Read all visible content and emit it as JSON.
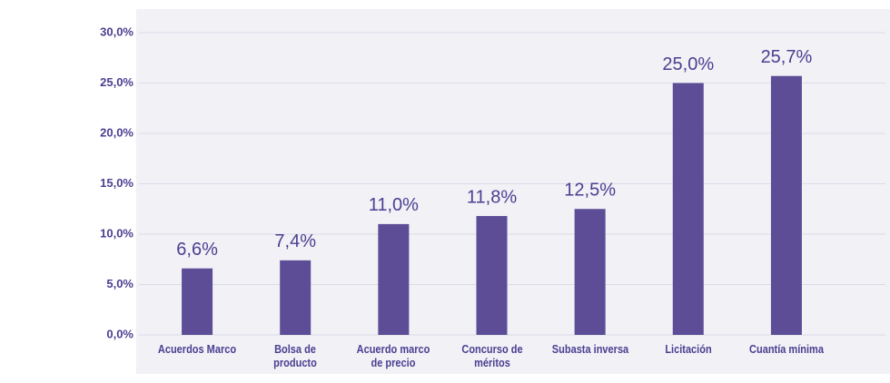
{
  "chart_data": {
    "type": "bar",
    "categories": [
      "Acuerdos Marco",
      "Bolsa de\nproducto",
      "Acuerdo marco\nde precio",
      "Concurso de\nméritos",
      "Subasta inversa",
      "Licitación",
      "Cuantía mínima"
    ],
    "values": [
      6.6,
      7.4,
      11.0,
      11.8,
      12.5,
      25.0,
      25.7
    ],
    "value_labels": [
      "6,6%",
      "7,4%",
      "11,0%",
      "11,8%",
      "12,5%",
      "25,0%",
      "25,7%"
    ],
    "color": "#5c4d96",
    "ylim": [
      0,
      30
    ],
    "yticks": [
      {
        "value": 0,
        "label": "0,0%"
      },
      {
        "value": 5,
        "label": "5,0%"
      },
      {
        "value": 10,
        "label": "10,0%"
      },
      {
        "value": 15,
        "label": "15,0%"
      },
      {
        "value": 20,
        "label": "20,0%"
      },
      {
        "value": 25,
        "label": "25,0%"
      },
      {
        "value": 30,
        "label": "30,0%"
      }
    ],
    "grid": true
  }
}
